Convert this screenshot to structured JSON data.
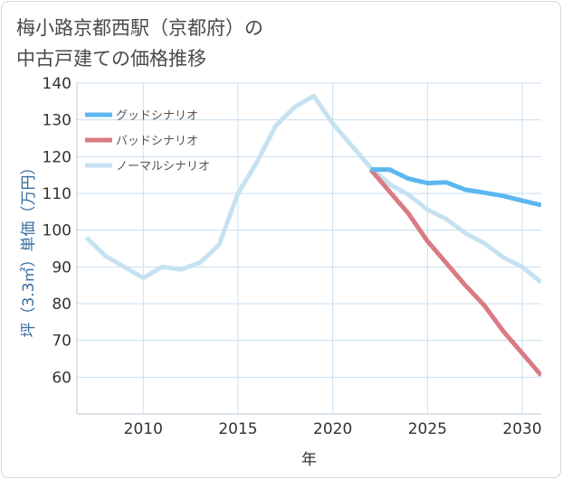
{
  "title": {
    "line1": "梅小路京都西駅（京都府）の",
    "line2": "中古戸建ての価格推移"
  },
  "colors": {
    "good": "#5cb7f0",
    "bad": "#d97b84",
    "normal": "#c6e2f1",
    "grid": "#c9dff0",
    "axis": "#333333",
    "ylabel": "#3a6fa0"
  },
  "chart_data": {
    "type": "line",
    "title": "梅小路京都西駅（京都府）の中古戸建ての価格推移",
    "xlabel": "年",
    "ylabel": "坪（3.3㎡）単価（万円）",
    "xlim": [
      2006.5,
      2031
    ],
    "ylim": [
      50,
      140
    ],
    "x_ticks": [
      2010,
      2015,
      2020,
      2025,
      2030
    ],
    "y_ticks": [
      60,
      70,
      80,
      90,
      100,
      110,
      120,
      130,
      140
    ],
    "grid": true,
    "legend_position": "top-left",
    "series": [
      {
        "name": "グッドシナリオ",
        "key": "good",
        "x": [
          2022,
          2023,
          2024,
          2025,
          2026,
          2027,
          2028,
          2029,
          2030,
          2031
        ],
        "values": [
          116.5,
          116.5,
          114.0,
          112.8,
          113.0,
          111.0,
          110.2,
          109.3,
          108.0,
          106.8
        ]
      },
      {
        "name": "バッドシナリオ",
        "key": "bad",
        "x": [
          2022,
          2023,
          2024,
          2025,
          2026,
          2027,
          2028,
          2029,
          2030,
          2031
        ],
        "values": [
          116.5,
          110.5,
          104.5,
          97.0,
          91.0,
          85.0,
          79.5,
          72.5,
          66.5,
          60.5
        ]
      },
      {
        "name": "ノーマルシナリオ",
        "key": "normal",
        "x": [
          2007,
          2008,
          2009,
          2010,
          2011,
          2012,
          2013,
          2014,
          2015,
          2016,
          2017,
          2018,
          2019,
          2020,
          2021,
          2022,
          2023,
          2024,
          2025,
          2026,
          2027,
          2028,
          2029,
          2030,
          2031
        ],
        "values": [
          98.0,
          93.0,
          90.0,
          87.0,
          90.0,
          89.3,
          91.2,
          96.0,
          110.0,
          118.5,
          128.5,
          133.5,
          136.5,
          129.0,
          123.0,
          117.0,
          112.5,
          109.6,
          105.6,
          103.0,
          99.2,
          96.4,
          92.6,
          90.0,
          85.8
        ]
      }
    ]
  }
}
